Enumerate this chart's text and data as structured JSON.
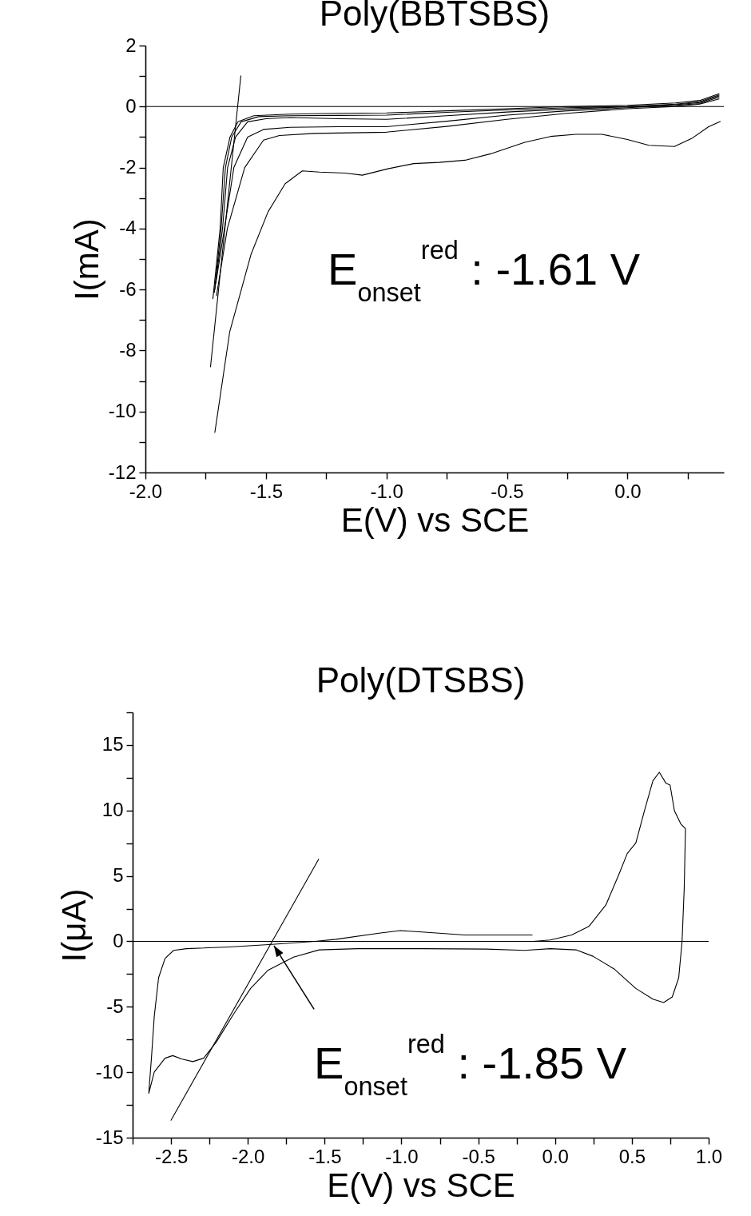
{
  "chart_data": [
    {
      "type": "line",
      "title": "Poly(BBTSBS)",
      "xlabel": "E(V) vs SCE",
      "ylabel": "I(mA)",
      "xlim": [
        -2.0,
        0.4
      ],
      "ylim": [
        -12,
        2
      ],
      "xticks": [
        {
          "value": -2,
          "label": "-2.0"
        },
        {
          "value": -1.75,
          "label": null
        },
        {
          "value": -1.5,
          "label": "-1.5"
        },
        {
          "value": -1.25,
          "label": null
        },
        {
          "value": -1,
          "label": "-1.0"
        },
        {
          "value": -0.75,
          "label": null
        },
        {
          "value": -0.5,
          "label": "-0.5"
        },
        {
          "value": -0.25,
          "label": null
        },
        {
          "value": 0,
          "label": "0.0"
        },
        {
          "value": 0.25,
          "label": null
        }
      ],
      "yticks": [
        2,
        {
          "value": 1,
          "label": null
        },
        0,
        {
          "value": -1,
          "label": null
        },
        -2,
        {
          "value": -3,
          "label": null
        },
        -4,
        {
          "value": -5,
          "label": null
        },
        -6,
        {
          "value": -7,
          "label": null
        },
        -8,
        {
          "value": -9,
          "label": null
        },
        -10,
        {
          "value": -11,
          "label": null
        },
        -12
      ],
      "grid": false,
      "line_style": "solid",
      "ref_lines": [
        {
          "axis": "y",
          "value": 0,
          "color": "#000000"
        }
      ],
      "annotations": [
        "E$_{onset}$$^{red}$ : -1.61 V"
      ],
      "series": [
        {
          "color": "#000000",
          "x": [
            -1.72,
            -1.69,
            -1.677,
            -1.649,
            -1.616,
            -1.55,
            -1.4,
            -1.2,
            -1.0,
            -0.75,
            -0.5,
            -0.25,
            0.0,
            0.2,
            0.3,
            0.38
          ],
          "values": [
            -6.3,
            -4,
            -2,
            -1,
            -0.5,
            -0.3,
            -0.25,
            -0.22,
            -0.21,
            -0.14,
            -0.07,
            0.0,
            0.04,
            0.12,
            0.2,
            0.42
          ]
        },
        {
          "color": "#000000",
          "x": [
            -1.714,
            -1.686,
            -1.668,
            -1.642,
            -1.603,
            -1.53,
            -1.4,
            -1.2,
            -1.0,
            -0.75,
            -0.5,
            -0.25,
            0.0,
            0.2,
            0.3,
            0.38
          ],
          "values": [
            -6.1,
            -4,
            -2,
            -1,
            -0.5,
            -0.33,
            -0.3,
            -0.29,
            -0.28,
            -0.19,
            -0.11,
            -0.04,
            0,
            0.08,
            0.16,
            0.38
          ]
        },
        {
          "color": "#000000",
          "x": [
            -1.712,
            -1.68,
            -1.659,
            -1.626,
            -1.576,
            -1.5,
            -1.4,
            -1.2,
            -1.0,
            -0.75,
            -0.5,
            -0.25,
            0.0,
            0.2,
            0.3,
            0.38
          ],
          "values": [
            -6.0,
            -4,
            -2,
            -1,
            -0.5,
            -0.4,
            -0.36,
            -0.4,
            -0.42,
            -0.3,
            -0.18,
            -0.08,
            -0.01,
            0.06,
            0.13,
            0.35
          ]
        },
        {
          "color": "#000000",
          "x": [
            -1.708,
            -1.672,
            -1.633,
            -1.576,
            -1.51,
            -1.4,
            -1.2,
            -1.0,
            -0.75,
            -0.5,
            -0.25,
            0.0,
            0.2,
            0.3,
            0.38
          ],
          "values": [
            -5.8,
            -4,
            -2,
            -1,
            -0.75,
            -0.68,
            -0.66,
            -0.66,
            -0.48,
            -0.28,
            -0.14,
            -0.04,
            0.04,
            0.1,
            0.31
          ]
        },
        {
          "color": "#000000",
          "x": [
            -1.705,
            -1.66,
            -1.588,
            -1.51,
            -1.444,
            -1.3,
            -1.0,
            -0.75,
            -0.5,
            -0.25,
            0.0,
            0.2,
            0.3,
            0.38
          ],
          "values": [
            -6.2,
            -4,
            -2,
            -1.1,
            -0.95,
            -0.88,
            -0.84,
            -0.65,
            -0.42,
            -0.22,
            -0.07,
            0.0,
            0.08,
            0.25
          ]
        },
        {
          "color": "#000000",
          "x": [
            -1.712,
            -1.65,
            -1.562,
            -1.491,
            -1.42,
            -1.349,
            -1.278,
            -1.171,
            -1.1,
            -0.994,
            -0.887,
            -0.781,
            -0.674,
            -0.568,
            -0.426,
            -0.319,
            -0.213,
            -0.106,
            0.0,
            0.089,
            0.195,
            0.266,
            0.337,
            0.385
          ],
          "values": [
            -10.69,
            -7.38,
            -4.85,
            -3.45,
            -2.53,
            -2.11,
            -2.15,
            -2.18,
            -2.25,
            -2.04,
            -1.87,
            -1.83,
            -1.76,
            -1.55,
            -1.17,
            -0.98,
            -0.91,
            -0.91,
            -1.08,
            -1.27,
            -1.31,
            -1.05,
            -0.66,
            -0.49
          ]
        },
        {
          "color": "#000000",
          "x": [
            -1.73,
            -1.604
          ],
          "values": [
            -8.54,
            1.01
          ]
        }
      ]
    },
    {
      "type": "line",
      "title": "Poly(DTSBS)",
      "xlabel": "E(V) vs SCE",
      "ylabel": "I(μA)",
      "xlim": [
        -2.75,
        1.0
      ],
      "ylim": [
        -15,
        17.5
      ],
      "xticks": [
        {
          "value": -2.75,
          "label": null
        },
        -2.5,
        {
          "value": -2.25,
          "label": null
        },
        {
          "value": -2,
          "label": "-2.0"
        },
        {
          "value": -1.75,
          "label": null
        },
        -1.5,
        {
          "value": -1.25,
          "label": null
        },
        {
          "value": -1,
          "label": "-1.0"
        },
        {
          "value": -0.75,
          "label": null
        },
        -0.5,
        {
          "value": -0.25,
          "label": null
        },
        {
          "value": 0,
          "label": "0.0"
        },
        {
          "value": 0.25,
          "label": null
        },
        0.5,
        {
          "value": 0.75,
          "label": null
        },
        {
          "value": 1,
          "label": "1.0"
        }
      ],
      "yticks": [
        {
          "value": 17.5,
          "label": null
        },
        15,
        {
          "value": 12.5,
          "label": null
        },
        10,
        {
          "value": 7.5,
          "label": null
        },
        5,
        {
          "value": 2.5,
          "label": null
        },
        0,
        {
          "value": -2.5,
          "label": null
        },
        -5,
        {
          "value": -7.5,
          "label": null
        },
        -10,
        {
          "value": -12.5,
          "label": null
        },
        -15
      ],
      "grid": false,
      "line_style": "solid",
      "ref_lines": [
        {
          "axis": "y",
          "value": 0,
          "color": "#000000"
        }
      ],
      "annotations": [
        {
          "text": "E$_{onset}$$^{red}$ : -1.85 V",
          "x": -1.83,
          "y": -0.33
        }
      ],
      "series": [
        {
          "color": "#000000",
          "x": [
            -0.143,
            -0.031,
            0.108,
            0.22,
            0.331,
            0.414,
            0.47,
            0.526,
            0.582,
            0.637,
            0.679,
            0.721,
            0.749,
            0.777,
            0.818,
            0.849,
            0.841,
            0.827,
            0.805,
            0.763,
            0.707,
            0.637,
            0.526,
            0.387,
            0.247,
            0.136,
            -0.031,
            -0.199,
            -0.449,
            -0.867,
            -1.285,
            -1.536,
            -1.703,
            -1.87,
            -1.982,
            -2.093,
            -2.205,
            -2.288,
            -2.358,
            -2.428,
            -2.489,
            -2.539,
            -2.609,
            -2.645,
            -2.628,
            -2.609,
            -2.581,
            -2.539,
            -2.483,
            -2.4,
            -2.121,
            -1.842,
            -1.564,
            -1.425,
            -1.146,
            -1.007,
            -0.867,
            -0.589,
            -0.31,
            -0.149
          ],
          "values": [
            0,
            0.1,
            0.49,
            1.14,
            2.78,
            5.07,
            6.71,
            7.52,
            9.98,
            12.27,
            12.92,
            12.1,
            11.94,
            9.98,
            8.99,
            8.6,
            4.09,
            0,
            -2.78,
            -4.25,
            -4.68,
            -4.42,
            -3.6,
            -2.13,
            -1.14,
            -0.65,
            -0.56,
            -0.69,
            -0.59,
            -0.56,
            -0.56,
            -0.65,
            -1.21,
            -2.22,
            -3.6,
            -5.56,
            -7.69,
            -8.93,
            -9.19,
            -9.0,
            -8.73,
            -8.93,
            -9.98,
            -11.61,
            -9.0,
            -5.72,
            -2.78,
            -1.31,
            -0.69,
            -0.56,
            -0.43,
            -0.23,
            0,
            0.16,
            0.62,
            0.82,
            0.72,
            0.49,
            0.49,
            0.49
          ]
        },
        {
          "color": "#000000",
          "x": [
            -2.5,
            -1.539
          ],
          "values": [
            -13.67,
            6.28
          ]
        }
      ]
    }
  ]
}
